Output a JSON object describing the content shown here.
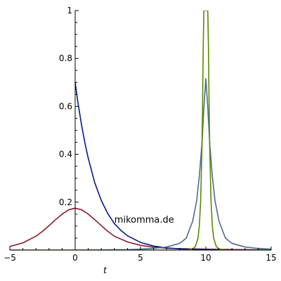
{
  "chart_data": {
    "type": "line",
    "xlabel": "t",
    "ylabel": "",
    "xlim": [
      -5,
      15
    ],
    "ylim": [
      0,
      1
    ],
    "grid": false,
    "x_ticks": [
      -5,
      0,
      5,
      10,
      15
    ],
    "x_tick_labels": [
      "−5",
      "0",
      "5",
      "10",
      "15"
    ],
    "y_ticks": [
      0.2,
      0.4,
      0.6,
      0.8,
      1
    ],
    "y_tick_labels": [
      "0.2",
      "0.4",
      "0.6",
      "0.8",
      "1"
    ],
    "annotation": {
      "text": "mikomma.de",
      "x": 3.0,
      "y": 0.115
    },
    "series": [
      {
        "color": "#8b1a2b",
        "x": [
          -5,
          -4,
          -3,
          -2.5,
          -2,
          -1.5,
          -1,
          -0.5,
          0,
          0.5,
          1,
          1.5,
          2,
          2.5,
          3,
          4,
          5,
          6,
          7,
          8,
          9,
          10,
          11,
          12,
          13,
          14,
          15
        ],
        "y": [
          0.015,
          0.03,
          0.058,
          0.078,
          0.102,
          0.127,
          0.15,
          0.168,
          0.175,
          0.168,
          0.15,
          0.127,
          0.102,
          0.078,
          0.058,
          0.034,
          0.02,
          0.012,
          0.008,
          0.006,
          0.005,
          0.004,
          0.003,
          0.0025,
          0.002,
          0.0015,
          0.001
        ]
      },
      {
        "color": "#001a8c",
        "x": [
          0,
          0.2,
          0.5,
          0.8,
          1,
          1.5,
          2,
          2.5,
          3,
          3.5,
          4,
          5,
          6,
          7,
          8,
          9,
          10,
          11,
          12,
          13,
          14,
          15
        ],
        "y": [
          0.7,
          0.62,
          0.518,
          0.433,
          0.384,
          0.281,
          0.207,
          0.152,
          0.111,
          0.082,
          0.06,
          0.032,
          0.017,
          0.009,
          0.005,
          0.003,
          0.002,
          0.001,
          0.0005,
          0.0003,
          0.0002,
          0.0001
        ]
      },
      {
        "color": "#4a6d8f",
        "x": [
          -5,
          0,
          2,
          4,
          5,
          6,
          7,
          8,
          8.5,
          9,
          9.3,
          9.5,
          9.7,
          9.85,
          10,
          10.15,
          10.3,
          10.5,
          10.7,
          11,
          11.5,
          12,
          13,
          14,
          15
        ],
        "y": [
          0.0,
          0.0,
          0.001,
          0.002,
          0.004,
          0.007,
          0.013,
          0.028,
          0.05,
          0.122,
          0.207,
          0.307,
          0.442,
          0.594,
          0.716,
          0.594,
          0.442,
          0.307,
          0.207,
          0.122,
          0.05,
          0.028,
          0.013,
          0.007,
          0.004
        ]
      },
      {
        "color": "#5a8a00",
        "x": [
          -5,
          5,
          7,
          8,
          8.5,
          9,
          9.2,
          9.4,
          9.5,
          9.6,
          9.7,
          9.75,
          9.8,
          9.85,
          9.9,
          10,
          10.1,
          10.15,
          10.2,
          10.25,
          10.3,
          10.4,
          10.5,
          10.6,
          10.8,
          11,
          11.5,
          12,
          13,
          15
        ],
        "y": [
          0,
          0,
          0.0,
          0.0,
          0.0,
          0.005,
          0.015,
          0.05,
          0.1,
          0.2,
          0.42,
          0.6,
          0.85,
          1.0,
          1.0,
          1.0,
          1.0,
          1.0,
          0.85,
          0.6,
          0.42,
          0.2,
          0.1,
          0.05,
          0.015,
          0.005,
          0.0,
          0.0,
          0.0,
          0.0
        ]
      }
    ]
  }
}
